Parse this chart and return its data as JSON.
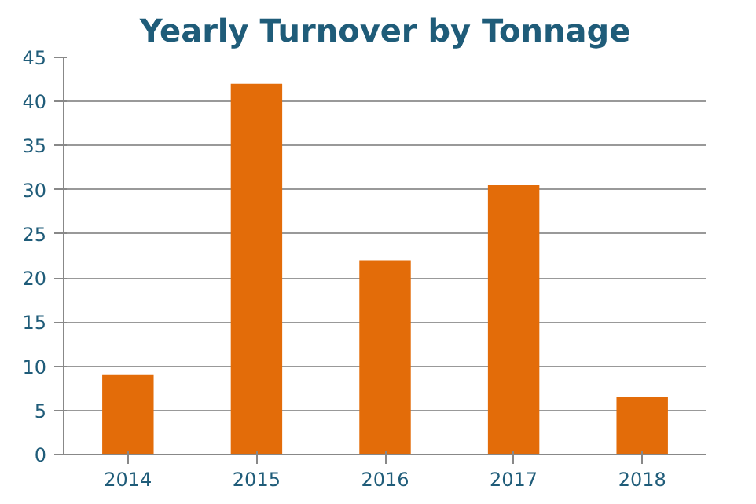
{
  "chart_data": {
    "type": "bar",
    "title": "Yearly Turnover by Tonnage",
    "categories": [
      "2014",
      "2015",
      "2016",
      "2017",
      "2018"
    ],
    "values": [
      9,
      42,
      22,
      30.5,
      6.5
    ],
    "color": "#e36c09",
    "ylim": [
      0,
      45
    ],
    "yticks": [
      0,
      5,
      10,
      15,
      20,
      25,
      30,
      35,
      40,
      45
    ],
    "grid": "y"
  }
}
